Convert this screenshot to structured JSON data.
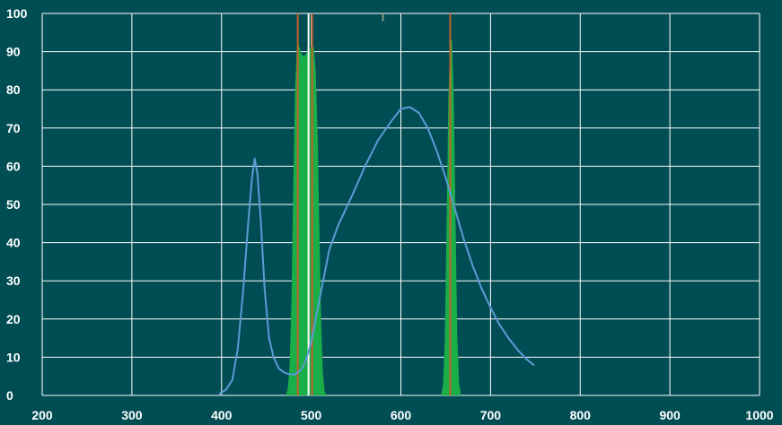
{
  "chart_data": {
    "type": "area",
    "title": "",
    "xlabel": "",
    "ylabel": "",
    "xlim": [
      200,
      1000
    ],
    "ylim": [
      0,
      100
    ],
    "x_ticks": [
      200,
      300,
      400,
      500,
      600,
      700,
      800,
      900,
      1000
    ],
    "y_ticks": [
      0,
      10,
      20,
      30,
      40,
      50,
      60,
      70,
      80,
      90,
      100
    ],
    "x_tick_labels": [
      "200",
      "300",
      "400",
      "500",
      "600",
      "700",
      "800",
      "900",
      "1000"
    ],
    "y_tick_labels": [
      "0",
      "10",
      "20",
      "30",
      "40",
      "50",
      "60",
      "70",
      "80",
      "90",
      "100"
    ],
    "grid": true,
    "legend": "none",
    "colors": {
      "background": "#014d54",
      "grid": "#ffffff",
      "curve": "#5b9bd5",
      "filter_fill": "#1aae48",
      "marker_orange": "#c0622a",
      "marker_white": "#ffffff",
      "tick_label": "#ffffff"
    },
    "series": [
      {
        "kind": "area",
        "color": "#1aae48",
        "points": [
          [
            472,
            0
          ],
          [
            474,
            2
          ],
          [
            476,
            8
          ],
          [
            478,
            25
          ],
          [
            480,
            55
          ],
          [
            482,
            80
          ],
          [
            484,
            91
          ],
          [
            486,
            92
          ],
          [
            488,
            90
          ],
          [
            490,
            89
          ],
          [
            493,
            89
          ],
          [
            496,
            90
          ],
          [
            499,
            91
          ],
          [
            501,
            92
          ],
          [
            503,
            91
          ],
          [
            505,
            85
          ],
          [
            507,
            70
          ],
          [
            509,
            45
          ],
          [
            511,
            20
          ],
          [
            513,
            6
          ],
          [
            515,
            1
          ],
          [
            517,
            0
          ]
        ]
      },
      {
        "kind": "area",
        "color": "#1aae48",
        "points": [
          [
            645,
            0
          ],
          [
            647,
            3
          ],
          [
            649,
            15
          ],
          [
            651,
            45
          ],
          [
            653,
            78
          ],
          [
            655,
            93
          ],
          [
            657,
            93
          ],
          [
            659,
            78
          ],
          [
            661,
            45
          ],
          [
            663,
            15
          ],
          [
            665,
            3
          ],
          [
            667,
            0
          ]
        ]
      },
      {
        "kind": "line",
        "color": "#5b9bd5",
        "points": [
          [
            398,
            0.5
          ],
          [
            405,
            1.5
          ],
          [
            412,
            4
          ],
          [
            418,
            12
          ],
          [
            424,
            27
          ],
          [
            430,
            46
          ],
          [
            434,
            57
          ],
          [
            437,
            62
          ],
          [
            440,
            58
          ],
          [
            444,
            45
          ],
          [
            448,
            28
          ],
          [
            453,
            15
          ],
          [
            458,
            10
          ],
          [
            464,
            7
          ],
          [
            470,
            6
          ],
          [
            476,
            5.5
          ],
          [
            482,
            5.5
          ],
          [
            488,
            6.5
          ],
          [
            494,
            9
          ],
          [
            500,
            14
          ],
          [
            505,
            20
          ],
          [
            510,
            26
          ],
          [
            515,
            32
          ],
          [
            520,
            38
          ],
          [
            530,
            44.5
          ],
          [
            545,
            52
          ],
          [
            560,
            60
          ],
          [
            575,
            67
          ],
          [
            590,
            72
          ],
          [
            600,
            75
          ],
          [
            610,
            75.5
          ],
          [
            620,
            74
          ],
          [
            630,
            70
          ],
          [
            640,
            64
          ],
          [
            650,
            57
          ],
          [
            660,
            49
          ],
          [
            670,
            41
          ],
          [
            680,
            34
          ],
          [
            690,
            28
          ],
          [
            700,
            23
          ],
          [
            710,
            18.5
          ],
          [
            720,
            15
          ],
          [
            730,
            12
          ],
          [
            740,
            9.5
          ],
          [
            748,
            8
          ]
        ]
      },
      {
        "kind": "vline",
        "color": "#c0622a",
        "x": 485,
        "y_range": [
          0,
          100
        ]
      },
      {
        "kind": "vline",
        "color": "#ffffff",
        "x": 497,
        "y_range": [
          0,
          100
        ]
      },
      {
        "kind": "vline",
        "color": "#c0622a",
        "x": 501,
        "y_range": [
          0,
          100
        ]
      },
      {
        "kind": "vline",
        "color": "#c0622a",
        "x": 655,
        "y_range": [
          0,
          100
        ]
      },
      {
        "kind": "vline",
        "color": "#8a9a8a",
        "x": 580,
        "y_range": [
          98,
          100
        ]
      }
    ]
  }
}
